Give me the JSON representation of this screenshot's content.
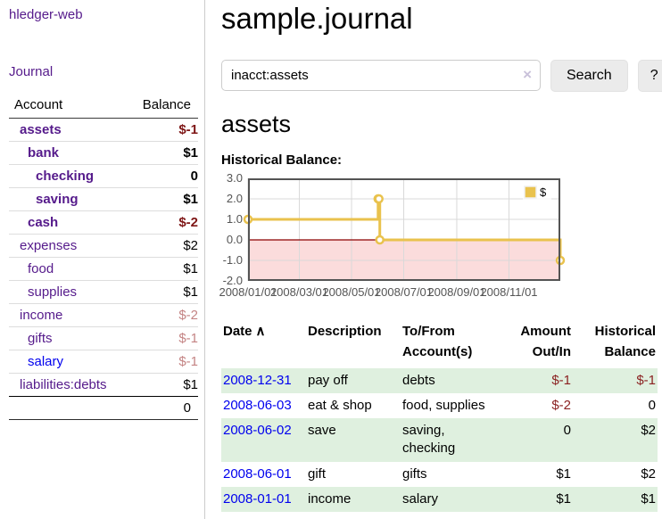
{
  "sidebar": {
    "brand": "hledger-web",
    "journal_label": "Journal",
    "accounts": {
      "account_header": "Account",
      "balance_header": "Balance",
      "rows": [
        {
          "name": "assets",
          "balance": "$-1",
          "depth": 1,
          "bold": true,
          "balance_style": "neg-strong"
        },
        {
          "name": "bank",
          "balance": "$1",
          "depth": 2,
          "bold": true,
          "balance_style": "strong"
        },
        {
          "name": "checking",
          "balance": "0",
          "depth": 3,
          "bold": true,
          "balance_style": "strong"
        },
        {
          "name": "saving",
          "balance": "$1",
          "depth": 3,
          "bold": true,
          "balance_style": "strong"
        },
        {
          "name": "cash",
          "balance": "$-2",
          "depth": 2,
          "bold": true,
          "balance_style": "neg-strong"
        },
        {
          "name": "expenses",
          "balance": "$2",
          "depth": 1,
          "bold": false,
          "balance_style": ""
        },
        {
          "name": "food",
          "balance": "$1",
          "depth": 2,
          "bold": false,
          "balance_style": ""
        },
        {
          "name": "supplies",
          "balance": "$1",
          "depth": 2,
          "bold": false,
          "balance_style": ""
        },
        {
          "name": "income",
          "balance": "$-2",
          "depth": 1,
          "bold": false,
          "balance_style": "neg-dim"
        },
        {
          "name": "gifts",
          "balance": "$-1",
          "depth": 2,
          "bold": false,
          "balance_style": "neg-dim"
        },
        {
          "name": "salary",
          "balance": "$-1",
          "depth": 2,
          "bold": false,
          "link_color": "blue",
          "balance_style": "neg-dim"
        },
        {
          "name": "liabilities:debts",
          "balance": "$1",
          "depth": 1,
          "bold": false,
          "balance_style": ""
        }
      ],
      "total": "0"
    }
  },
  "header": {
    "title": "sample.journal"
  },
  "search": {
    "value": "inacct:assets",
    "clear_icon": "×",
    "button_label": "Search",
    "help_label": "?"
  },
  "account_page": {
    "title": "assets",
    "chart_label": "Historical Balance:"
  },
  "chart_data": {
    "type": "line",
    "step": true,
    "title": "Historical Balance",
    "series": [
      {
        "name": "$",
        "color": "#e9c24d",
        "points": [
          [
            "2008-01-01",
            1
          ],
          [
            "2008-06-01",
            2
          ],
          [
            "2008-06-02",
            2
          ],
          [
            "2008-06-03",
            0
          ],
          [
            "2008-12-31",
            -1
          ]
        ]
      }
    ],
    "x_ticks": [
      "2008/01/01",
      "2008/03/01",
      "2008/05/01",
      "2008/07/01",
      "2008/09/01",
      "2008/11/01"
    ],
    "y_ticks": [
      3.0,
      2.0,
      1.0,
      0.0,
      -1.0,
      -2.0
    ],
    "xlim": [
      "2008-01-01",
      "2008-12-31"
    ],
    "ylim": [
      -2,
      3
    ],
    "grid": true,
    "negative_region_color": "#fbdcdc",
    "zero_line_color": "#8b0000",
    "legend": {
      "label": "$",
      "position": "top-right"
    }
  },
  "register": {
    "columns": [
      {
        "label": "Date",
        "sort_indicator": "∧",
        "align": "left"
      },
      {
        "label": "Description",
        "align": "left"
      },
      {
        "label": "To/From Account(s)",
        "align": "left"
      },
      {
        "label": "Amount Out/In",
        "align": "right"
      },
      {
        "label": "Historical Balance",
        "align": "right"
      }
    ],
    "rows": [
      {
        "date": "2008-12-31",
        "description": "pay off",
        "accounts": "debts",
        "amount": "$-1",
        "amount_negative": true,
        "balance": "$-1",
        "balance_negative": true
      },
      {
        "date": "2008-06-03",
        "description": "eat & shop",
        "accounts": "food, supplies",
        "amount": "$-2",
        "amount_negative": true,
        "balance": "0",
        "balance_negative": false
      },
      {
        "date": "2008-06-02",
        "description": "save",
        "accounts": "saving, checking",
        "amount": "0",
        "amount_negative": false,
        "balance": "$2",
        "balance_negative": false
      },
      {
        "date": "2008-06-01",
        "description": "gift",
        "accounts": "gifts",
        "amount": "$1",
        "amount_negative": false,
        "balance": "$2",
        "balance_negative": false
      },
      {
        "date": "2008-01-01",
        "description": "income",
        "accounts": "salary",
        "amount": "$1",
        "amount_negative": false,
        "balance": "$1",
        "balance_negative": false
      }
    ]
  },
  "colors": {
    "link_visited": "#551a8b",
    "link_unvisited": "#0000ee",
    "negative_strong": "#7e1616",
    "negative_dim": "#c48484",
    "negative": "#8b2222",
    "row_stripe": "#dff0df",
    "series_accent": "#e9c24d"
  }
}
